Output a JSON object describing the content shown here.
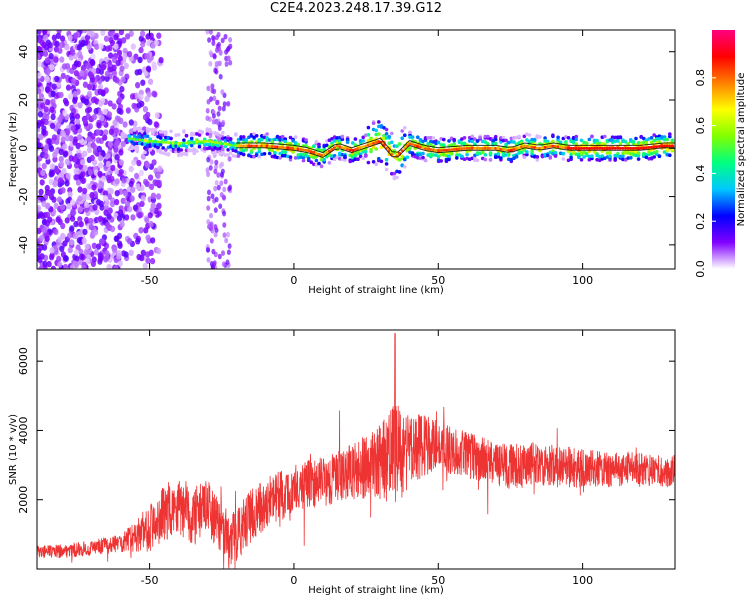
{
  "page_title": "C2E4.2023.248.17.39.G12",
  "chart_data": [
    {
      "type": "heatmap",
      "title": "C2E4.2023.248.17.39.G12",
      "xlabel": "Height of straight line (km)",
      "ylabel": "Frequency (Hz)",
      "xlim": [
        -89,
        132
      ],
      "ylim": [
        -50,
        49
      ],
      "x_ticks": [
        -50,
        0,
        50,
        100
      ],
      "y_ticks": [
        -40,
        -20,
        0,
        20,
        40
      ],
      "colorbar": {
        "label": "Normalized spectral amplitude",
        "range": [
          0.0,
          1.0
        ],
        "ticks": [
          0.0,
          0.2,
          0.4,
          0.6,
          0.8
        ],
        "colors": [
          "#ffffff",
          "#8000ff",
          "#0000ff",
          "#00c8ff",
          "#00ff80",
          "#80ff00",
          "#ffff00",
          "#ff8000",
          "#ff0000",
          "#ff0080"
        ]
      },
      "band": {
        "center_hz": [
          [
            -57,
            4
          ],
          [
            -50,
            3
          ],
          [
            -40,
            2
          ],
          [
            -30,
            3
          ],
          [
            -20,
            1
          ],
          [
            -10,
            1
          ],
          [
            0,
            0
          ],
          [
            5,
            -1
          ],
          [
            10,
            -3
          ],
          [
            15,
            1
          ],
          [
            20,
            -1
          ],
          [
            25,
            1
          ],
          [
            30,
            3
          ],
          [
            35,
            -4
          ],
          [
            40,
            2
          ],
          [
            45,
            0
          ],
          [
            50,
            -1
          ],
          [
            60,
            0
          ],
          [
            70,
            0
          ],
          [
            75,
            -1
          ],
          [
            80,
            1
          ],
          [
            85,
            0
          ],
          [
            90,
            1
          ],
          [
            95,
            0
          ],
          [
            100,
            0
          ],
          [
            110,
            0
          ],
          [
            120,
            0
          ],
          [
            128,
            1
          ],
          [
            132,
            1
          ]
        ],
        "noise_region_km": [
          -89,
          -50
        ],
        "scatter_strip_km": [
          -30,
          -22
        ]
      }
    },
    {
      "type": "line",
      "xlabel": "Height of straight line (km)",
      "ylabel": "SNR (10 * v/v)",
      "xlim": [
        -89,
        132
      ],
      "ylim": [
        0,
        6900
      ],
      "x_ticks": [
        -50,
        0,
        50,
        100
      ],
      "y_ticks": [
        2000,
        4000,
        6000
      ],
      "color": "#ee3333",
      "mean_series": {
        "x": [
          -89,
          -80,
          -70,
          -60,
          -55,
          -50,
          -45,
          -40,
          -35,
          -30,
          -25,
          -22,
          -20,
          -15,
          -10,
          -5,
          0,
          5,
          10,
          15,
          20,
          25,
          30,
          35,
          40,
          45,
          50,
          55,
          60,
          65,
          70,
          75,
          80,
          85,
          90,
          95,
          100,
          105,
          110,
          115,
          120,
          125,
          130,
          132
        ],
        "values": [
          500,
          520,
          600,
          750,
          900,
          1200,
          1600,
          1900,
          1500,
          1800,
          1200,
          700,
          1000,
          1500,
          1900,
          2100,
          2300,
          2450,
          2550,
          2650,
          2800,
          2950,
          3100,
          3300,
          3400,
          3550,
          3600,
          3400,
          3300,
          3150,
          3000,
          2950,
          3000,
          3050,
          3000,
          2950,
          2900,
          2900,
          2850,
          2900,
          2900,
          2850,
          2800,
          2900
        ]
      },
      "noise_amplitude": {
        "x": [
          -89,
          -60,
          -50,
          -40,
          -30,
          -20,
          0,
          20,
          30,
          35,
          40,
          50,
          70,
          90,
          110,
          132
        ],
        "values": [
          180,
          260,
          700,
          900,
          800,
          800,
          700,
          800,
          1100,
          1500,
          1100,
          700,
          650,
          650,
          500,
          450
        ]
      },
      "peak": {
        "x": 35,
        "value": 6800
      }
    }
  ]
}
